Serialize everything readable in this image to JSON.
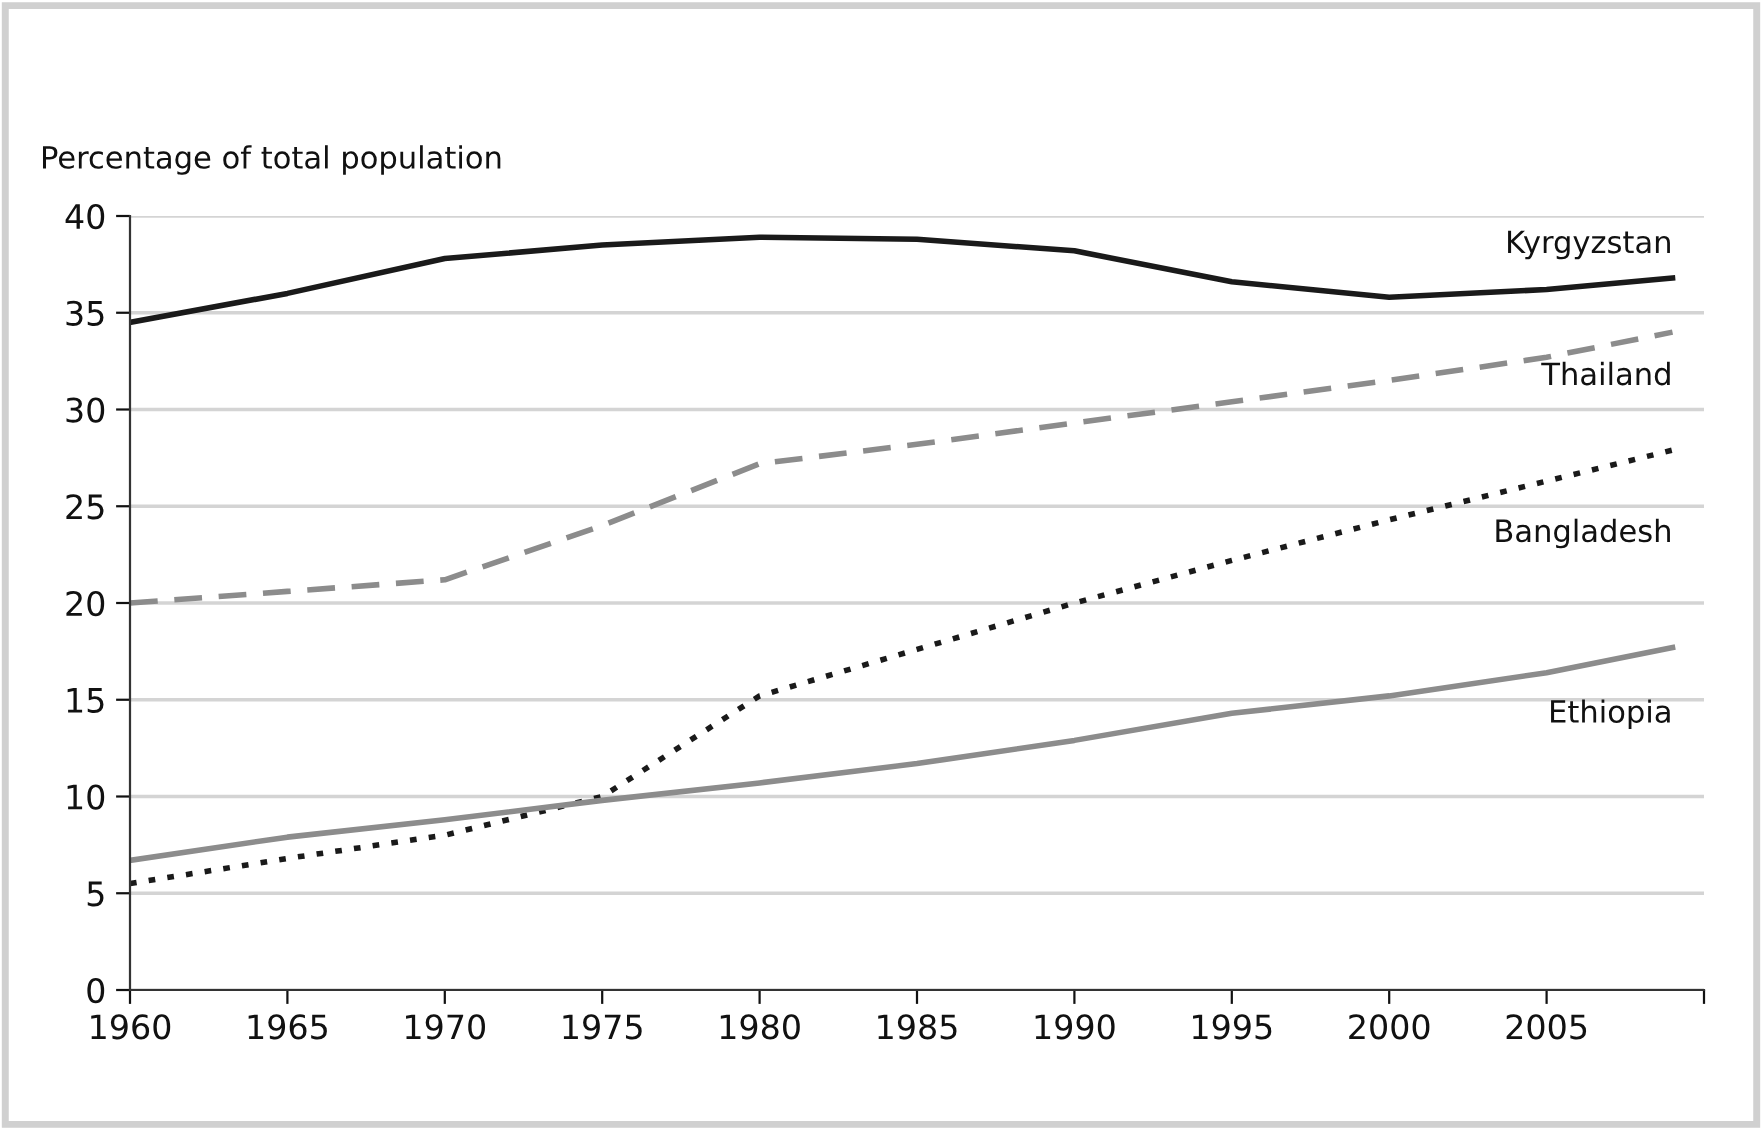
{
  "chart_data": {
    "type": "line",
    "ylabel": "Percentage of total population",
    "x": [
      1960,
      1965,
      1970,
      1975,
      1980,
      1985,
      1990,
      1995,
      2000,
      2005,
      2009
    ],
    "xlim": [
      1960,
      2010
    ],
    "xticks": [
      1960,
      1965,
      1970,
      1975,
      1980,
      1985,
      1990,
      1995,
      2000,
      2005,
      {
        "value": 2010,
        "label": null
      }
    ],
    "ylim": [
      0,
      40
    ],
    "yticks": [
      0,
      5,
      10,
      15,
      20,
      25,
      30,
      35,
      40
    ],
    "grid": "y",
    "legend": false,
    "series": [
      {
        "name": "Kyrgyzstan",
        "color": "#1a1a1a",
        "line_style": "solid",
        "values": [
          34.5,
          36.0,
          37.8,
          38.5,
          38.9,
          38.8,
          38.2,
          36.6,
          35.8,
          36.2,
          36.8
        ]
      },
      {
        "name": "Thailand",
        "color": "#8c8c8c",
        "line_style": "dashed",
        "values": [
          20.0,
          20.6,
          21.2,
          24.0,
          27.2,
          28.2,
          29.3,
          30.4,
          31.5,
          32.7,
          34.0
        ]
      },
      {
        "name": "Bangladesh",
        "color": "#1a1a1a",
        "line_style": "dotted",
        "values": [
          5.5,
          6.8,
          8.0,
          10.0,
          15.2,
          17.6,
          20.0,
          22.2,
          24.3,
          26.3,
          27.9
        ]
      },
      {
        "name": "Ethiopia",
        "color": "#8c8c8c",
        "line_style": "solid",
        "values": [
          6.7,
          7.9,
          8.8,
          9.8,
          10.7,
          11.7,
          12.9,
          14.3,
          15.2,
          16.4,
          17.7
        ]
      }
    ]
  }
}
